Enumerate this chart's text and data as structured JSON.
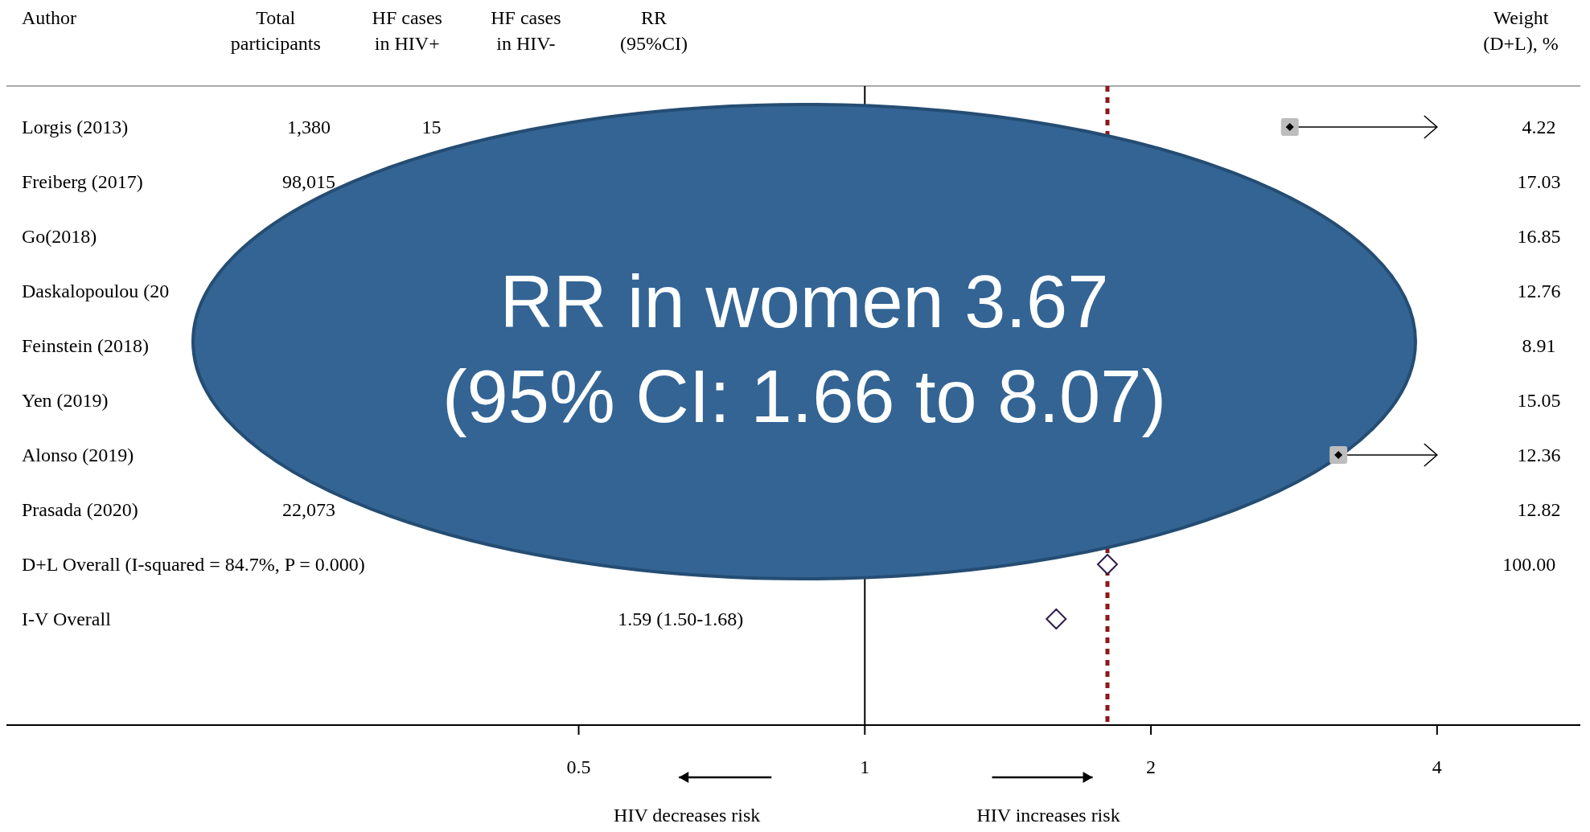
{
  "chart_data": {
    "type": "scatter",
    "orientation": "horizontal",
    "log": "x",
    "ylabel": "Author",
    "categories": [
      "Lorgis (2013)",
      "Freiberg (2017)",
      "Go(2018)",
      "Daskalopoulou (20",
      "Feinstein (2018)",
      "Yen (2019)",
      "Alonso (2019)",
      "Prasada (2020)",
      "D+L Overall  (I-squared = 84.7%, P = 0.000)",
      "I-V Overall"
    ],
    "series": [
      {
        "type": "scatter",
        "marker": "square",
        "color": "#bdbdbd",
        "values": [
          2.8,
          null,
          null,
          null,
          null,
          null,
          3.15,
          null,
          null,
          null
        ]
      },
      {
        "type": "scatter",
        "marker": "diamond",
        "color": "#2e1f4f",
        "values": [
          null,
          null,
          null,
          null,
          null,
          null,
          null,
          null,
          1.8,
          1.59
        ]
      }
    ],
    "xlim": [
      0.125,
      5.66
    ],
    "xticks": [
      0.5,
      1,
      2,
      4
    ],
    "grid": false,
    "ref_lines": [
      {
        "axis": "x",
        "value": 1,
        "color": "#000000",
        "line_style": "solid"
      },
      {
        "axis": "x",
        "value": 1.8,
        "color": "#8b1a1a",
        "line_style": "dotted"
      }
    ],
    "annotations": [
      "RR in women 3.67\n(95% CI: 1.66 to 8.07)",
      "Total\nparticipants",
      "HF cases\nin HIV+",
      "HF cases\nin HIV-",
      "RR\n(95%CI)",
      "Weight\n(D+L), %",
      "1,380",
      "15",
      "98,015",
      "22,073",
      "1.59 (1.50-1.68)",
      "4.22",
      "17.03",
      "16.85",
      "12.76",
      "8.91",
      "15.05",
      "12.36",
      "12.82",
      "100.00",
      "HIV decreases risk",
      "HIV increases risk"
    ]
  }
}
